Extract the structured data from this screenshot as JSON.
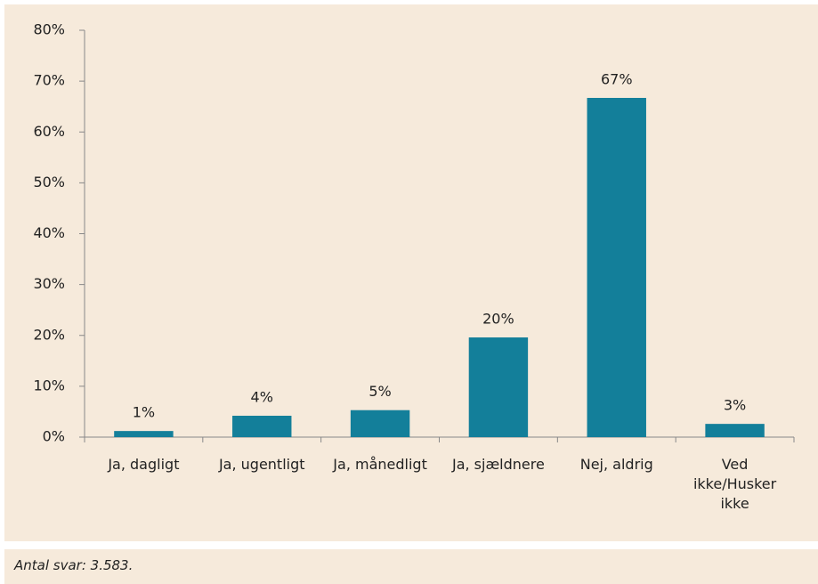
{
  "chart_data": {
    "type": "bar",
    "categories": [
      "Ja, dagligt",
      "Ja, ugentligt",
      "Ja, månedligt",
      "Ja, sjældnere",
      "Nej, aldrig",
      "Ved ikke/Husker ikke"
    ],
    "values": [
      1.2,
      4.2,
      5.3,
      19.6,
      66.7,
      2.6
    ],
    "value_labels": [
      "1%",
      "4%",
      "5%",
      "20%",
      "67%",
      "3%"
    ],
    "color": "#137f9a",
    "ylim": [
      0,
      80
    ],
    "yticks": [
      {
        "value": 0,
        "label": "0%"
      },
      {
        "value": 10,
        "label": "10%"
      },
      {
        "value": 20,
        "label": "20%"
      },
      {
        "value": 30,
        "label": "30%"
      },
      {
        "value": 40,
        "label": "40%"
      },
      {
        "value": 50,
        "label": "50%"
      },
      {
        "value": 60,
        "label": "60%"
      },
      {
        "value": 70,
        "label": "70%"
      },
      {
        "value": 80,
        "label": "80%"
      }
    ],
    "grid": false,
    "footnote": "Antal svar: 3.583."
  }
}
